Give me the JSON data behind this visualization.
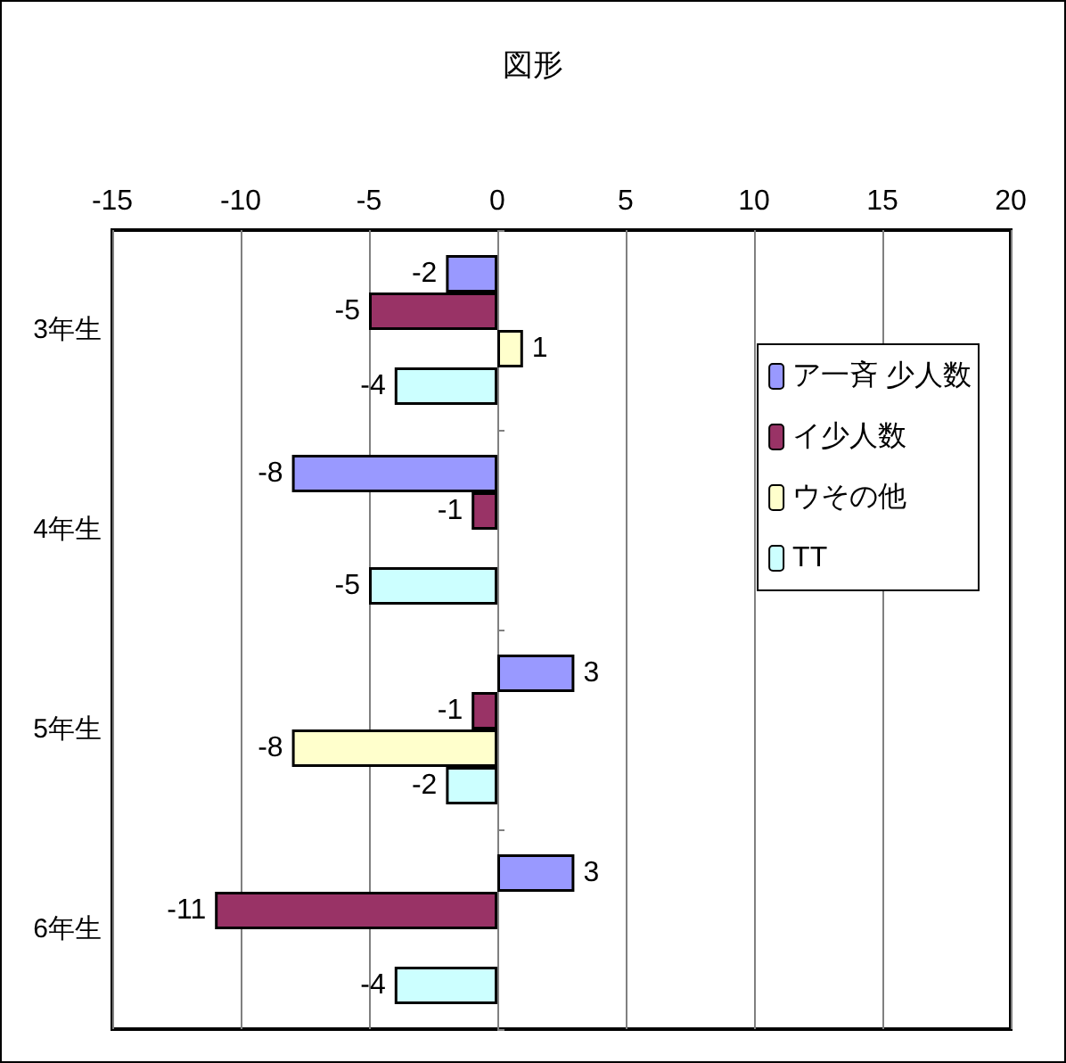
{
  "chart_data": {
    "type": "bar",
    "title": "図形",
    "orientation": "horizontal",
    "categories": [
      "3年生",
      "4年生",
      "5年生",
      "6年生"
    ],
    "series": [
      {
        "name": "ア一斉 少人数",
        "color": "#9999ff",
        "values": [
          -2,
          -8,
          3,
          3
        ]
      },
      {
        "name": "イ少人数",
        "color": "#993366",
        "values": [
          -5,
          -1,
          -1,
          -11
        ]
      },
      {
        "name": "ウその他",
        "color": "#ffffcc",
        "values": [
          1,
          null,
          -8,
          null
        ]
      },
      {
        "name": "TT",
        "color": "#ccffff",
        "values": [
          -4,
          -5,
          -2,
          -4
        ]
      }
    ],
    "xlim": [
      -15,
      20
    ],
    "xticks": [
      -15,
      -10,
      -5,
      0,
      5,
      10,
      15,
      20
    ],
    "grid": "x",
    "legend": "right",
    "data_labels": true
  }
}
